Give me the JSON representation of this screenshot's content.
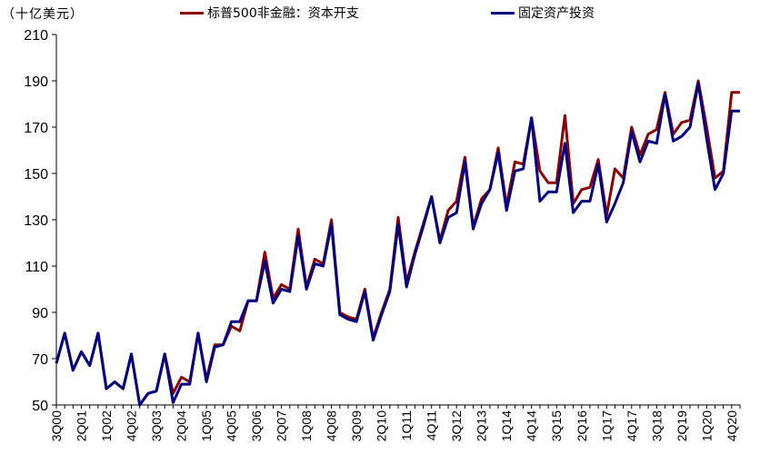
{
  "unit_label": "（十亿美元）",
  "legend": [
    {
      "label": "标普500非金融：资本开支",
      "color": "#8B0000"
    },
    {
      "label": "固定资产投资",
      "color": "#000080"
    }
  ],
  "chart_data": {
    "type": "line",
    "ylim": [
      50,
      210
    ],
    "yticks": [
      50,
      70,
      90,
      110,
      130,
      150,
      170,
      190,
      210
    ],
    "grid": false,
    "legend_position": "top",
    "xtick_labels": [
      "3Q00",
      "2Q01",
      "1Q02",
      "4Q02",
      "3Q03",
      "2Q04",
      "1Q05",
      "4Q05",
      "3Q06",
      "2Q07",
      "1Q08",
      "4Q08",
      "3Q09",
      "2Q10",
      "1Q11",
      "4Q11",
      "3Q12",
      "2Q13",
      "1Q14",
      "4Q14",
      "3Q15",
      "2Q16",
      "1Q17",
      "4Q17",
      "3Q18",
      "2Q19",
      "1Q20",
      "4Q20"
    ],
    "x": [
      "3Q00",
      "4Q00",
      "1Q01",
      "2Q01",
      "3Q01",
      "4Q01",
      "1Q02",
      "2Q02",
      "3Q02",
      "4Q02",
      "1Q03",
      "2Q03",
      "3Q03",
      "4Q03",
      "1Q04",
      "2Q04",
      "3Q04",
      "4Q04",
      "1Q05",
      "2Q05",
      "3Q05",
      "4Q05",
      "1Q06",
      "2Q06",
      "3Q06",
      "4Q06",
      "1Q07",
      "2Q07",
      "3Q07",
      "4Q07",
      "1Q08",
      "2Q08",
      "3Q08",
      "4Q08",
      "1Q09",
      "2Q09",
      "3Q09",
      "4Q09",
      "1Q10",
      "2Q10",
      "3Q10",
      "4Q10",
      "1Q11",
      "2Q11",
      "3Q11",
      "4Q11",
      "1Q12",
      "2Q12",
      "3Q12",
      "4Q12",
      "1Q13",
      "2Q13",
      "3Q13",
      "4Q13",
      "1Q14",
      "2Q14",
      "3Q14",
      "4Q14",
      "1Q15",
      "2Q15",
      "3Q15",
      "4Q15",
      "1Q16",
      "2Q16",
      "3Q16",
      "4Q16",
      "1Q17",
      "2Q17",
      "3Q17",
      "4Q17",
      "1Q18",
      "2Q18",
      "3Q18",
      "4Q18",
      "1Q19",
      "2Q19",
      "3Q19",
      "4Q19",
      "1Q20",
      "2Q20",
      "3Q20",
      "4Q20",
      "1Q21"
    ],
    "series": [
      {
        "name": "标普500非金融：资本开支",
        "color": "#8B0000",
        "values": [
          68,
          81,
          65,
          73,
          67,
          81,
          57,
          60,
          57,
          72,
          50,
          55,
          56,
          72,
          55,
          62,
          60,
          81,
          61,
          76,
          76,
          84,
          82,
          95,
          95,
          116,
          96,
          102,
          100,
          126,
          101,
          113,
          111,
          130,
          90,
          88,
          87,
          100,
          79,
          90,
          100,
          131,
          103,
          116,
          128,
          140,
          121,
          134,
          138,
          157,
          127,
          139,
          143,
          161,
          136,
          155,
          154,
          174,
          151,
          146,
          146,
          175,
          137,
          143,
          144,
          156,
          132,
          152,
          148,
          170,
          158,
          167,
          169,
          185,
          167,
          172,
          173,
          190,
          170,
          148,
          151,
          185,
          185
        ]
      },
      {
        "name": "固定资产投资",
        "color": "#000080",
        "values": [
          68,
          81,
          65,
          73,
          67,
          81,
          57,
          60,
          57,
          72,
          50,
          55,
          56,
          72,
          51,
          59,
          59,
          81,
          60,
          75,
          76,
          86,
          86,
          95,
          95,
          112,
          94,
          100,
          99,
          123,
          100,
          111,
          110,
          128,
          89,
          87,
          86,
          99,
          78,
          89,
          99,
          128,
          101,
          115,
          127,
          140,
          120,
          131,
          133,
          155,
          126,
          137,
          143,
          159,
          134,
          151,
          152,
          174,
          138,
          142,
          142,
          163,
          133,
          138,
          138,
          154,
          129,
          137,
          146,
          168,
          155,
          164,
          163,
          184,
          164,
          166,
          170,
          189,
          165,
          143,
          150,
          177,
          177
        ]
      }
    ]
  }
}
